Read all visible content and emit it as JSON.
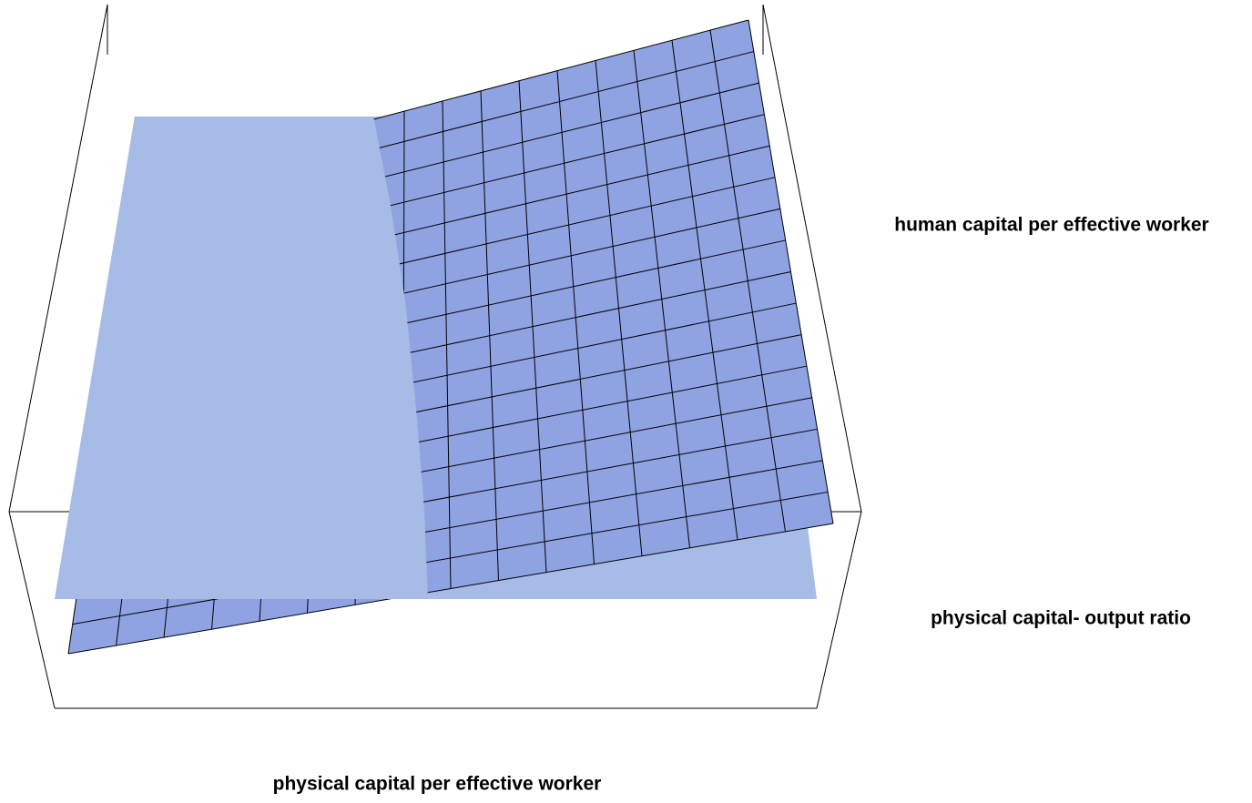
{
  "chart_data": {
    "type": "surface",
    "xlabel": "physical capital per effective worker",
    "ylabel": "human capital per effective worker",
    "zlabel": "physical capital- output ratio"
  }
}
